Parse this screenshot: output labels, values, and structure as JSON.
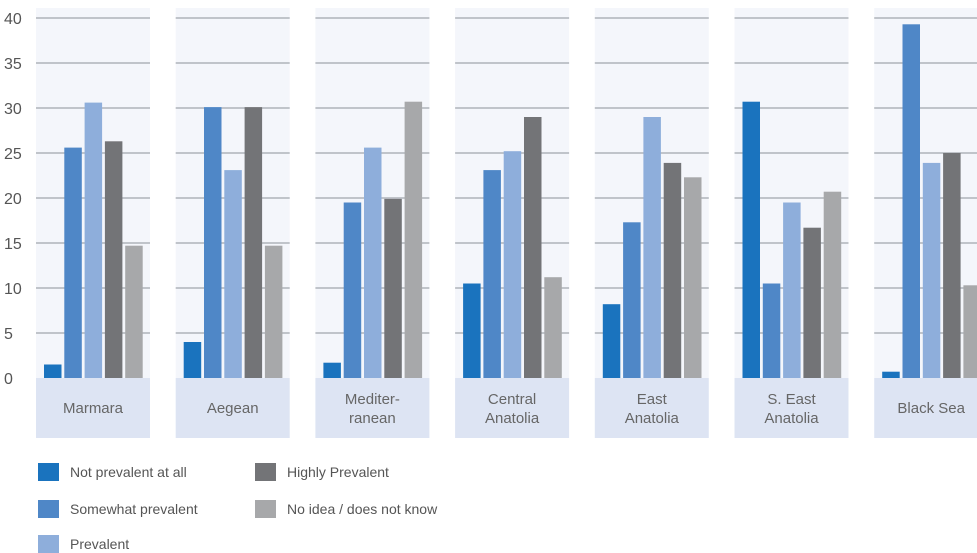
{
  "chart_data": {
    "type": "bar",
    "categories": [
      [
        "Marmara"
      ],
      [
        "Aegean"
      ],
      [
        "Mediter-",
        "ranean"
      ],
      [
        "Central",
        "Anatolia"
      ],
      [
        "East",
        "Anatolia"
      ],
      [
        "S. East",
        "Anatolia"
      ],
      [
        "Black Sea"
      ]
    ],
    "series": [
      {
        "name": "Not prevalent at all",
        "color": "#1a73be",
        "values": [
          1.5,
          4.0,
          1.7,
          10.5,
          8.2,
          30.7,
          0.7
        ]
      },
      {
        "name": "Somewhat prevalent",
        "color": "#4f87c7",
        "values": [
          25.6,
          30.1,
          19.5,
          23.1,
          17.3,
          10.5,
          39.3
        ]
      },
      {
        "name": "Prevalent",
        "color": "#8eaedb",
        "values": [
          30.6,
          23.1,
          25.6,
          25.2,
          29.0,
          19.5,
          23.9
        ]
      },
      {
        "name": "Highly Prevalent",
        "color": "#737477",
        "values": [
          26.3,
          30.1,
          19.9,
          29.0,
          23.9,
          16.7,
          25.0
        ]
      },
      {
        "name": "No idea / does not know",
        "color": "#a7a8aa",
        "values": [
          14.7,
          14.7,
          30.7,
          11.2,
          22.3,
          20.7,
          10.3
        ]
      }
    ],
    "yticks": [
      "0",
      "5",
      "10",
      "15",
      "20",
      "25",
      "30",
      "35",
      "40"
    ],
    "ylim": [
      0,
      40
    ],
    "grid": true,
    "legend": "bottom-left",
    "panel_color": "#f4f6fb",
    "label_box_color": "#dde4f3"
  }
}
